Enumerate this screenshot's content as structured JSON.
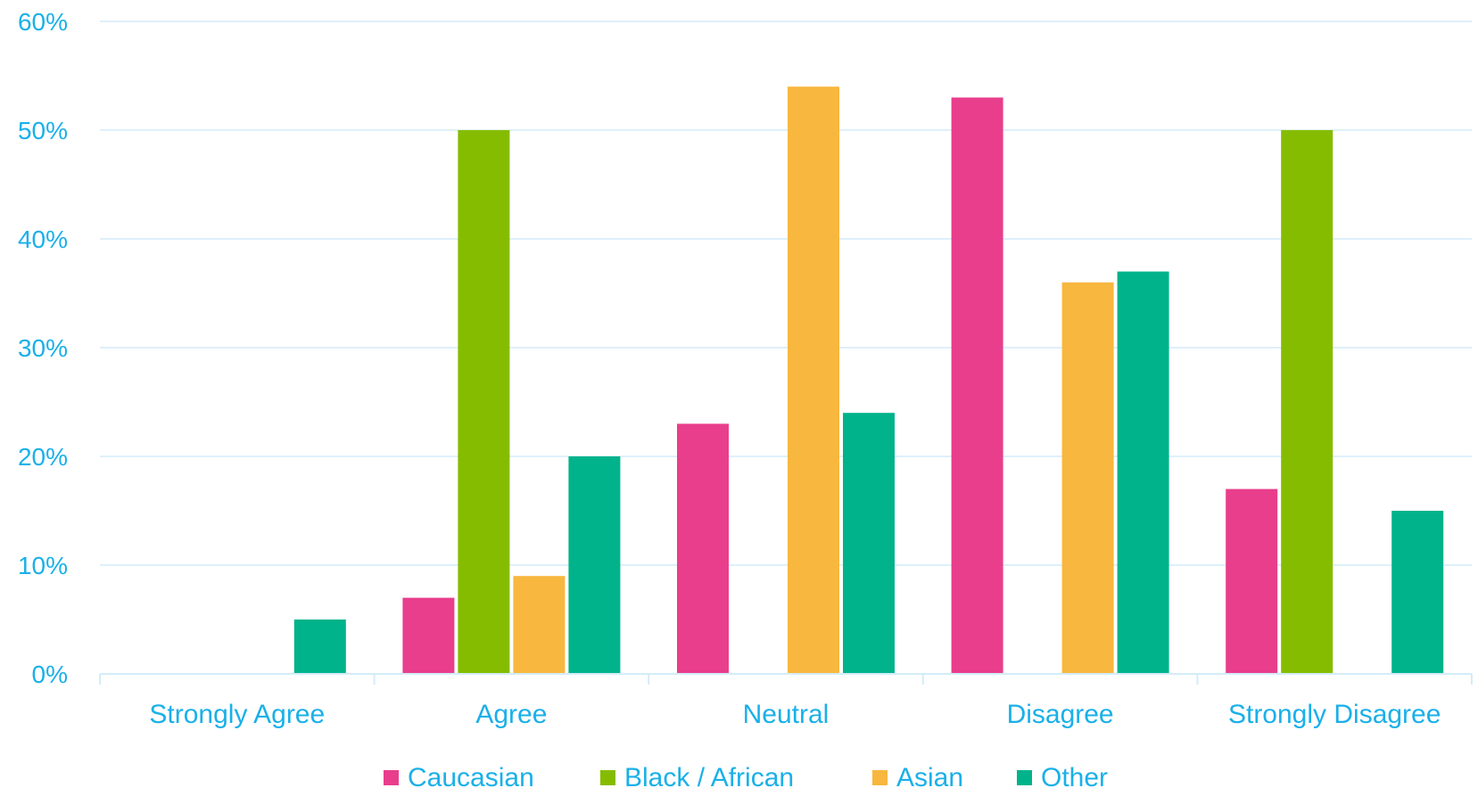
{
  "chart_data": {
    "type": "bar",
    "categories": [
      "Strongly Agree",
      "Agree",
      "Neutral",
      "Disagree",
      "Strongly Disagree"
    ],
    "series": [
      {
        "name": "Caucasian",
        "color": "#e83e8c",
        "values": [
          0,
          7,
          23,
          53,
          17
        ]
      },
      {
        "name": "Black / African",
        "color": "#85bc00",
        "values": [
          0,
          50,
          0,
          0,
          50
        ]
      },
      {
        "name": "Asian",
        "color": "#f8b73e",
        "values": [
          0,
          9,
          54,
          36,
          0
        ]
      },
      {
        "name": "Other",
        "color": "#00b38a",
        "values": [
          5,
          20,
          24,
          37,
          15
        ]
      }
    ],
    "ylim": [
      0,
      60
    ],
    "yticks": [
      "0%",
      "10%",
      "20%",
      "30%",
      "40%",
      "50%",
      "60%"
    ],
    "ytick_values": [
      0,
      10,
      20,
      30,
      40,
      50,
      60
    ],
    "grid": true,
    "legend_position": "bottom",
    "axis_text_color": "#1ab0e8",
    "grid_color": "#d3ecf8"
  }
}
